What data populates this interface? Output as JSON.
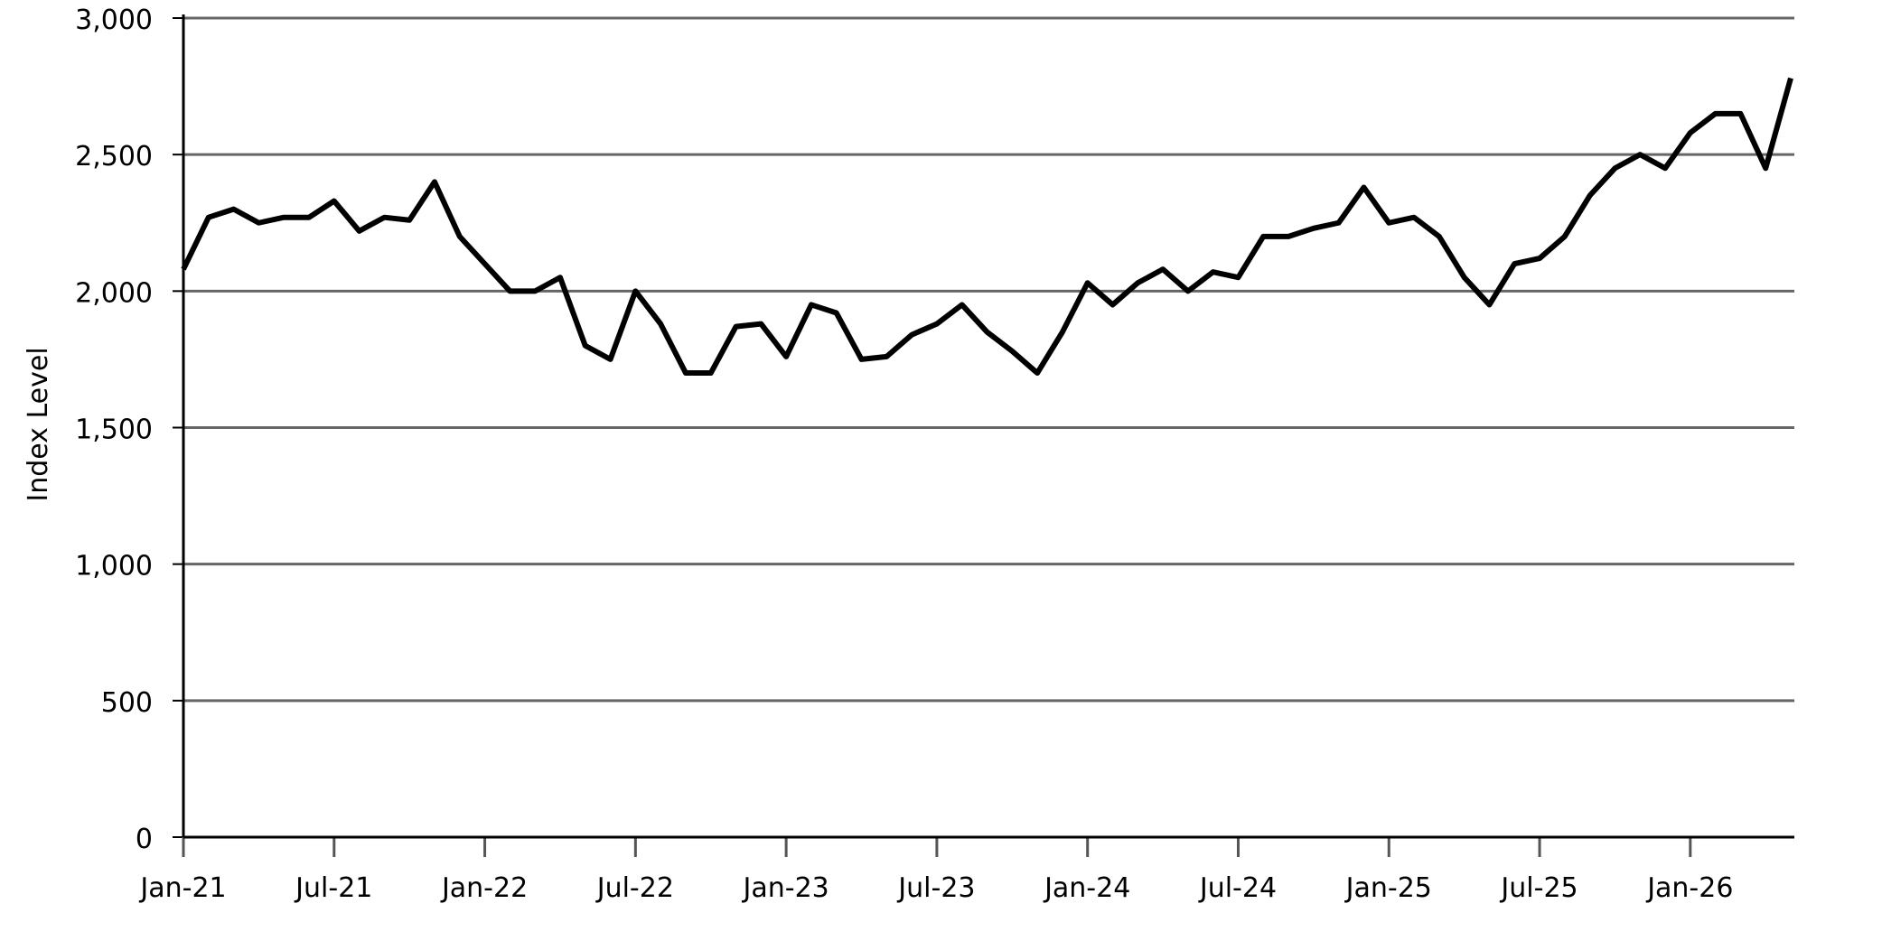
{
  "chart_data": {
    "type": "line",
    "y_label": "Index Level",
    "x": [
      "2021-01",
      "2021-02",
      "2021-03",
      "2021-04",
      "2021-05",
      "2021-06",
      "2021-07",
      "2021-08",
      "2021-09",
      "2021-10",
      "2021-11",
      "2021-12",
      "2022-01",
      "2022-02",
      "2022-03",
      "2022-04",
      "2022-05",
      "2022-06",
      "2022-07",
      "2022-08",
      "2022-09",
      "2022-10",
      "2022-11",
      "2022-12",
      "2023-01",
      "2023-02",
      "2023-03",
      "2023-04",
      "2023-05",
      "2023-06",
      "2023-07",
      "2023-08",
      "2023-09",
      "2023-10",
      "2023-11",
      "2023-12",
      "2024-01",
      "2024-02",
      "2024-03",
      "2024-04",
      "2024-05",
      "2024-06",
      "2024-07",
      "2024-08",
      "2024-09",
      "2024-10",
      "2024-11",
      "2024-12",
      "2025-01",
      "2025-02",
      "2025-03",
      "2025-04",
      "2025-05",
      "2025-06",
      "2025-07",
      "2025-08",
      "2025-09",
      "2025-10",
      "2025-11",
      "2025-12",
      "2026-01",
      "2026-02",
      "2026-03",
      "2026-04",
      "2026-05"
    ],
    "series": [
      {
        "name": "Index Level",
        "color": "#000000",
        "values": [
          2080,
          2270,
          2300,
          2250,
          2270,
          2270,
          2330,
          2220,
          2270,
          2260,
          2400,
          2200,
          2100,
          2000,
          2000,
          2050,
          1800,
          1750,
          2000,
          1880,
          1700,
          1700,
          1870,
          1880,
          1760,
          1950,
          1920,
          1750,
          1760,
          1840,
          1880,
          1950,
          1850,
          1780,
          1700,
          1850,
          2030,
          1950,
          2030,
          2080,
          2000,
          2070,
          2050,
          2200,
          2200,
          2230,
          2250,
          2380,
          2250,
          2270,
          2200,
          2050,
          1950,
          2100,
          2120,
          2200,
          2350,
          2450,
          2500,
          2450,
          2580,
          2650,
          2650,
          2450,
          2780
        ]
      }
    ],
    "xlim": [
      "2021-01",
      "2026-05"
    ],
    "xticks": [
      {
        "value": "2021-01",
        "label": "Jan-21"
      },
      {
        "value": "2021-07",
        "label": "Jul-21"
      },
      {
        "value": "2022-01",
        "label": "Jan-22"
      },
      {
        "value": "2022-07",
        "label": "Jul-22"
      },
      {
        "value": "2023-01",
        "label": "Jan-23"
      },
      {
        "value": "2023-07",
        "label": "Jul-23"
      },
      {
        "value": "2024-01",
        "label": "Jan-24"
      },
      {
        "value": "2024-07",
        "label": "Jul-24"
      },
      {
        "value": "2025-01",
        "label": "Jan-25"
      },
      {
        "value": "2025-07",
        "label": "Jul-25"
      },
      {
        "value": "2026-01",
        "label": "Jan-26"
      }
    ],
    "ylim": [
      0,
      3000
    ],
    "yticks": [
      0,
      {
        "value": 500,
        "label": "500"
      },
      {
        "value": 1000,
        "label": "1,000"
      },
      {
        "value": 1500,
        "label": "1,500"
      },
      {
        "value": 2000,
        "label": "2,000"
      },
      {
        "value": 2500,
        "label": "2,500"
      },
      {
        "value": 3000,
        "label": "3,000"
      }
    ],
    "grid": true
  }
}
